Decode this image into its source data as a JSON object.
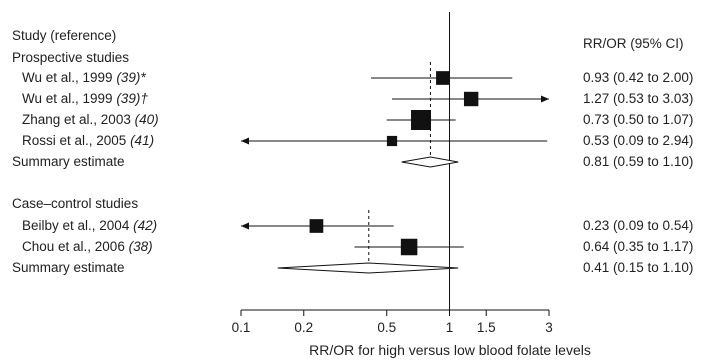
{
  "chart_data": {
    "type": "forest",
    "xscale": "log",
    "xlim": [
      0.1,
      3
    ],
    "xticks": [
      0.1,
      0.2,
      0.5,
      1,
      1.5,
      3
    ],
    "xtick_labels": [
      "0.1",
      "0.2",
      "0.5",
      "1",
      "1.5",
      "3"
    ],
    "xlabel": "RR/OR for high versus low blood folate levels",
    "column_header_left": "Study (reference)",
    "column_header_right": "RR/OR (95% CI)",
    "groups": [
      {
        "name": "Prospective studies",
        "summary_dashed_value": 0.81,
        "studies": [
          {
            "label": "Wu et al., 1999",
            "ref": "(39)",
            "mark": "*",
            "est": 0.93,
            "lo": 0.42,
            "hi": 2.0,
            "weight": 0.55,
            "arrow_left": false,
            "arrow_right": false,
            "ci_text": "0.93 (0.42 to 2.00)"
          },
          {
            "label": "Wu et al., 1999",
            "ref": "(39)",
            "mark": "†",
            "est": 1.27,
            "lo": 0.53,
            "hi": 3.03,
            "weight": 0.6,
            "arrow_left": false,
            "arrow_right": true,
            "ci_text": "1.27 (0.53 to 3.03)"
          },
          {
            "label": "Zhang et al., 2003",
            "ref": "(40)",
            "mark": "",
            "est": 0.73,
            "lo": 0.5,
            "hi": 1.07,
            "weight": 1.0,
            "arrow_left": false,
            "arrow_right": false,
            "ci_text": "0.73 (0.50 to 1.07)"
          },
          {
            "label": "Rossi et al., 2005",
            "ref": "(41)",
            "mark": "",
            "est": 0.53,
            "lo": 0.09,
            "hi": 2.94,
            "weight": 0.3,
            "arrow_left": true,
            "arrow_right": false,
            "ci_text": "0.53 (0.09 to 2.94)"
          }
        ],
        "summary": {
          "label": "Summary estimate",
          "est": 0.81,
          "lo": 0.59,
          "hi": 1.1,
          "ci_text": "0.81 (0.59 to 1.10)"
        }
      },
      {
        "name": "Case–control studies",
        "summary_dashed_value": 0.41,
        "studies": [
          {
            "label": "Beilby et al., 2004",
            "ref": "(42)",
            "mark": "",
            "est": 0.23,
            "lo": 0.09,
            "hi": 0.54,
            "weight": 0.55,
            "arrow_left": true,
            "arrow_right": false,
            "ci_text": "0.23 (0.09 to 0.54)"
          },
          {
            "label": "Chou et al., 2006",
            "ref": "(38)",
            "mark": "",
            "est": 0.64,
            "lo": 0.35,
            "hi": 1.17,
            "weight": 0.75,
            "arrow_left": false,
            "arrow_right": false,
            "ci_text": "0.64 (0.35 to 1.17)"
          }
        ],
        "summary": {
          "label": "Summary estimate",
          "est": 0.41,
          "lo": 0.15,
          "hi": 1.1,
          "ci_text": "0.41 (0.15 to 1.10)"
        }
      }
    ]
  }
}
